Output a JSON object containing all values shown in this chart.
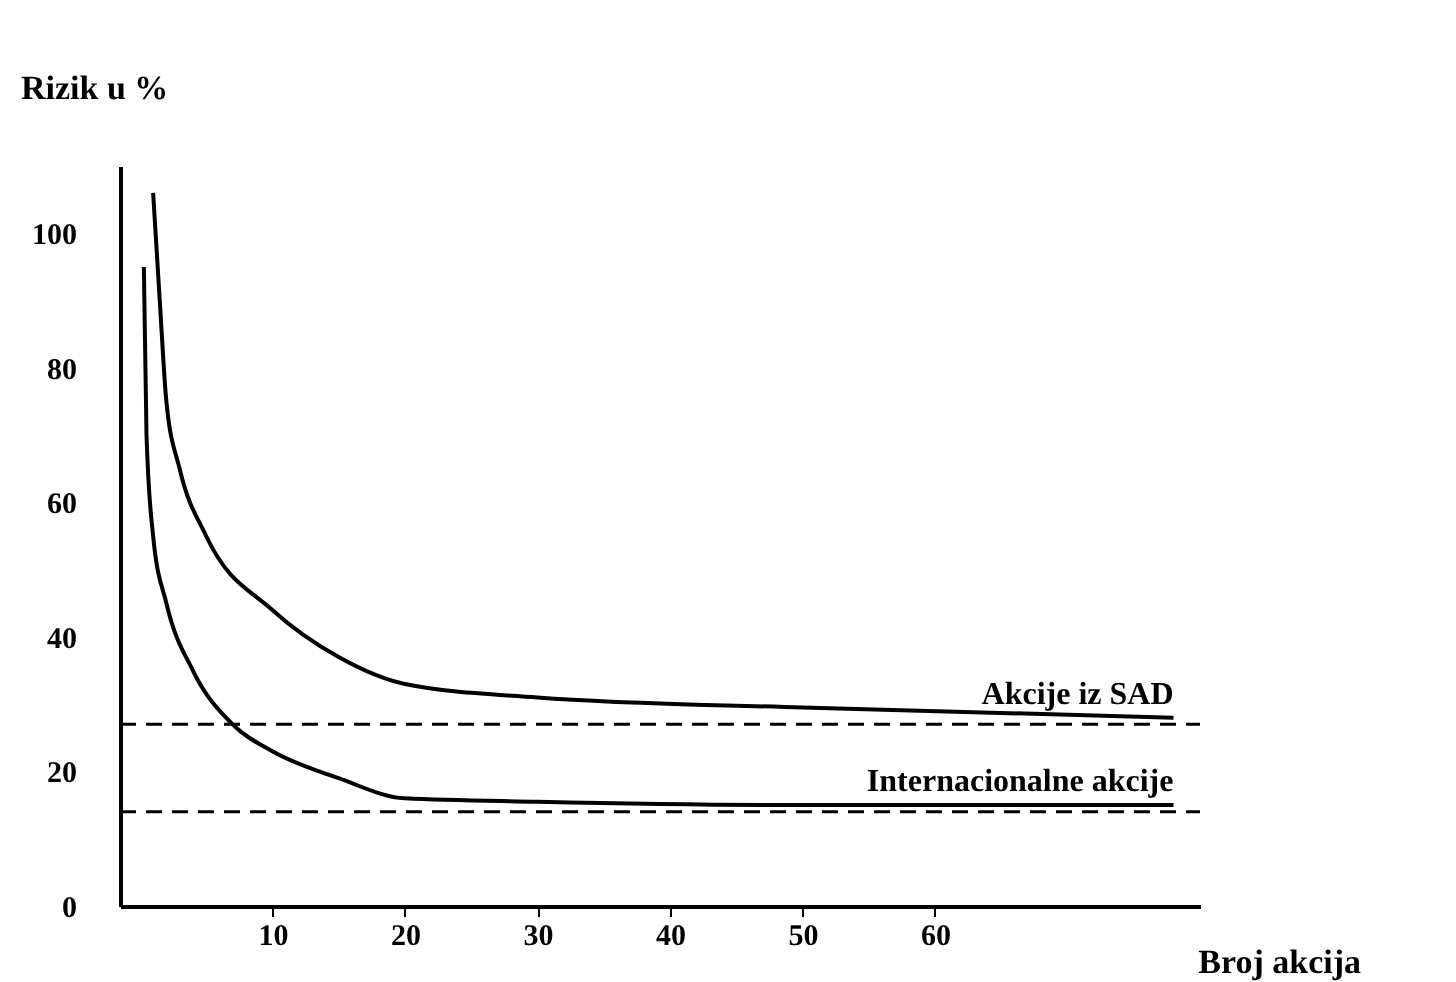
{
  "chart_data": {
    "type": "line",
    "xlabel": "Broj akcija",
    "ylabel": "Rizik u %",
    "xlim": [
      -1.5,
      80
    ],
    "xticks": [
      10,
      20,
      30,
      40,
      50,
      60
    ],
    "ylim": [
      0,
      110
    ],
    "yticks": [
      0,
      20,
      40,
      60,
      80,
      100
    ],
    "grid": false,
    "marker": "none",
    "line_style": "solid",
    "series": [
      {
        "name": "Akcije iz SAD",
        "color": "#000000",
        "x": [
          1,
          1.5,
          2,
          3,
          5,
          10,
          15,
          20,
          30,
          50,
          78
        ],
        "values": [
          106,
          90,
          75,
          65,
          55,
          44,
          37,
          33,
          31,
          29.5,
          28
        ]
      },
      {
        "name": "Internacionalne akcije",
        "color": "#000000",
        "x": [
          0.3,
          0.5,
          1,
          2,
          4,
          7,
          10,
          15,
          20,
          30,
          50,
          78
        ],
        "values": [
          95,
          70,
          55,
          45,
          35,
          27,
          23,
          19,
          16,
          15.5,
          15,
          15
        ]
      }
    ],
    "ref_lines": [
      {
        "axis": "y",
        "value": 27,
        "line_style": "dashed",
        "color": "#000000"
      },
      {
        "axis": "y",
        "value": 14,
        "line_style": "dashed",
        "color": "#000000"
      }
    ]
  }
}
